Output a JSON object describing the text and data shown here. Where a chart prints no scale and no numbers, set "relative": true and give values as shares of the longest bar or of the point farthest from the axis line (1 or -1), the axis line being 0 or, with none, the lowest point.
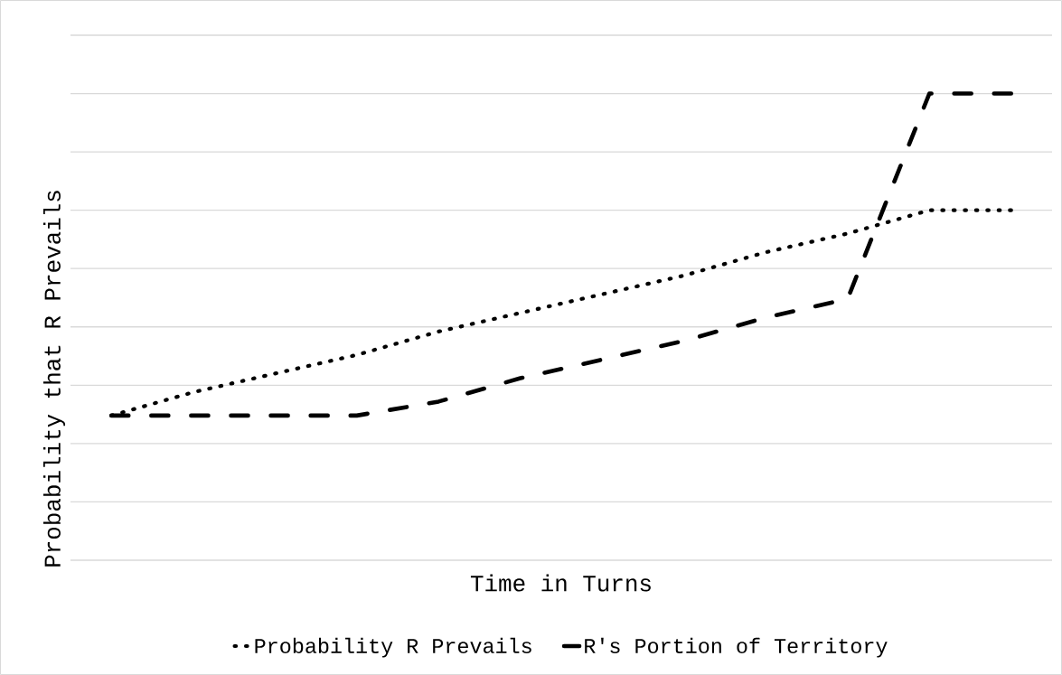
{
  "chart_data": {
    "type": "line",
    "xlabel": "Time in Turns",
    "ylabel": "Probability that R Prevails",
    "categories": [
      null,
      null,
      null,
      null,
      null,
      null,
      null,
      null,
      null,
      null,
      null,
      null
    ],
    "relative": true,
    "grid": "y",
    "legend": "bottom",
    "marker": "none",
    "series": [
      {
        "name": "Probability R Prevails",
        "color": "#000000",
        "line_style": "dotted",
        "values": [
          0.31,
          0.36,
          0.4,
          0.44,
          0.49,
          0.53,
          0.57,
          0.61,
          0.66,
          0.7,
          0.75,
          0.75
        ]
      },
      {
        "name": "R's Portion of Territory",
        "color": "#000000",
        "line_style": "dashed",
        "values": [
          0.31,
          0.31,
          0.31,
          0.31,
          0.34,
          0.39,
          0.43,
          0.47,
          0.52,
          0.56,
          1,
          1
        ]
      }
    ]
  }
}
